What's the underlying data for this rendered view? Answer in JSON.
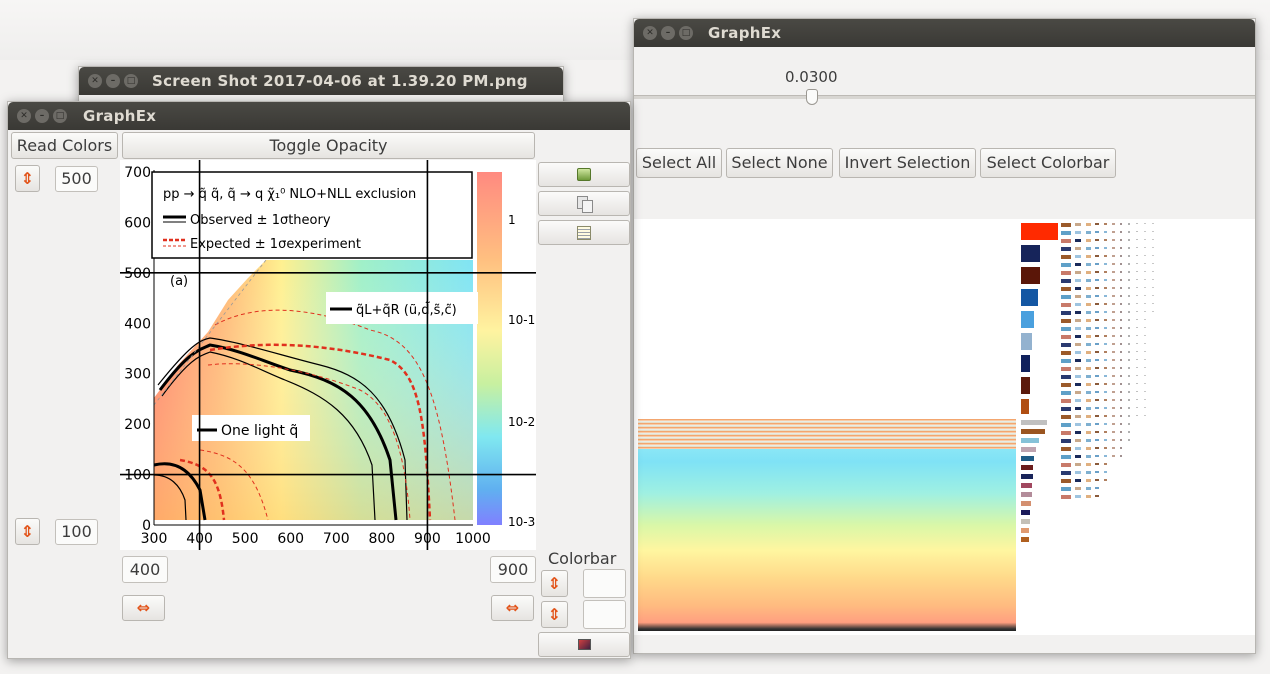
{
  "windows": {
    "screenshot": {
      "title": "Screen Shot 2017-04-06 at 1.39.20 PM.png"
    },
    "graphex_left": {
      "title": "GraphEx",
      "read_colors_label": "Read Colors",
      "toggle_opacity_label": "Toggle Opacity",
      "y_top_value": "500",
      "y_bottom_value": "100",
      "x_left_value": "400",
      "x_right_value": "900",
      "colorbar_label": "Colorbar",
      "colorbar_top_value": "",
      "colorbar_bottom_value": ""
    },
    "graphex_right": {
      "title": "GraphEx",
      "slider_value": 0.03,
      "slider_value_text": "0.0300",
      "select_all_label": "Select All",
      "select_none_label": "Select None",
      "invert_selection_label": "Invert Selection",
      "select_colorbar_label": "Select Colorbar"
    }
  },
  "plot": {
    "legend_title": "pp → q̃ q̃, q̃ → q χ̃₁⁰  NLO+NLL exclusion",
    "legend_observed": "Observed ± 1σtheory",
    "legend_expected": "Expected ± 1σexperiment",
    "panel_label": "(a)",
    "label_lr": "q̃L+q̃R (ũ,d̃,s̃,c̃)",
    "label_one_light": "One light q̃",
    "x_ticks": [
      "300",
      "400",
      "500",
      "600",
      "700",
      "800",
      "900",
      "1000"
    ],
    "y_ticks": [
      "700",
      "600",
      "500",
      "400",
      "300",
      "200",
      "100",
      "0"
    ],
    "z_ticks": [
      "1",
      "10-1",
      "10-2",
      "10-3"
    ],
    "x_range": [
      300,
      1000
    ],
    "y_range": [
      0,
      700
    ],
    "vlines_x": [
      400,
      900
    ],
    "hlines_y": [
      500,
      100
    ]
  },
  "colors": {
    "accent_arrow": "#e2541a",
    "titlebar": "#3d3c38",
    "selected_swatch": "#ff2a00"
  }
}
